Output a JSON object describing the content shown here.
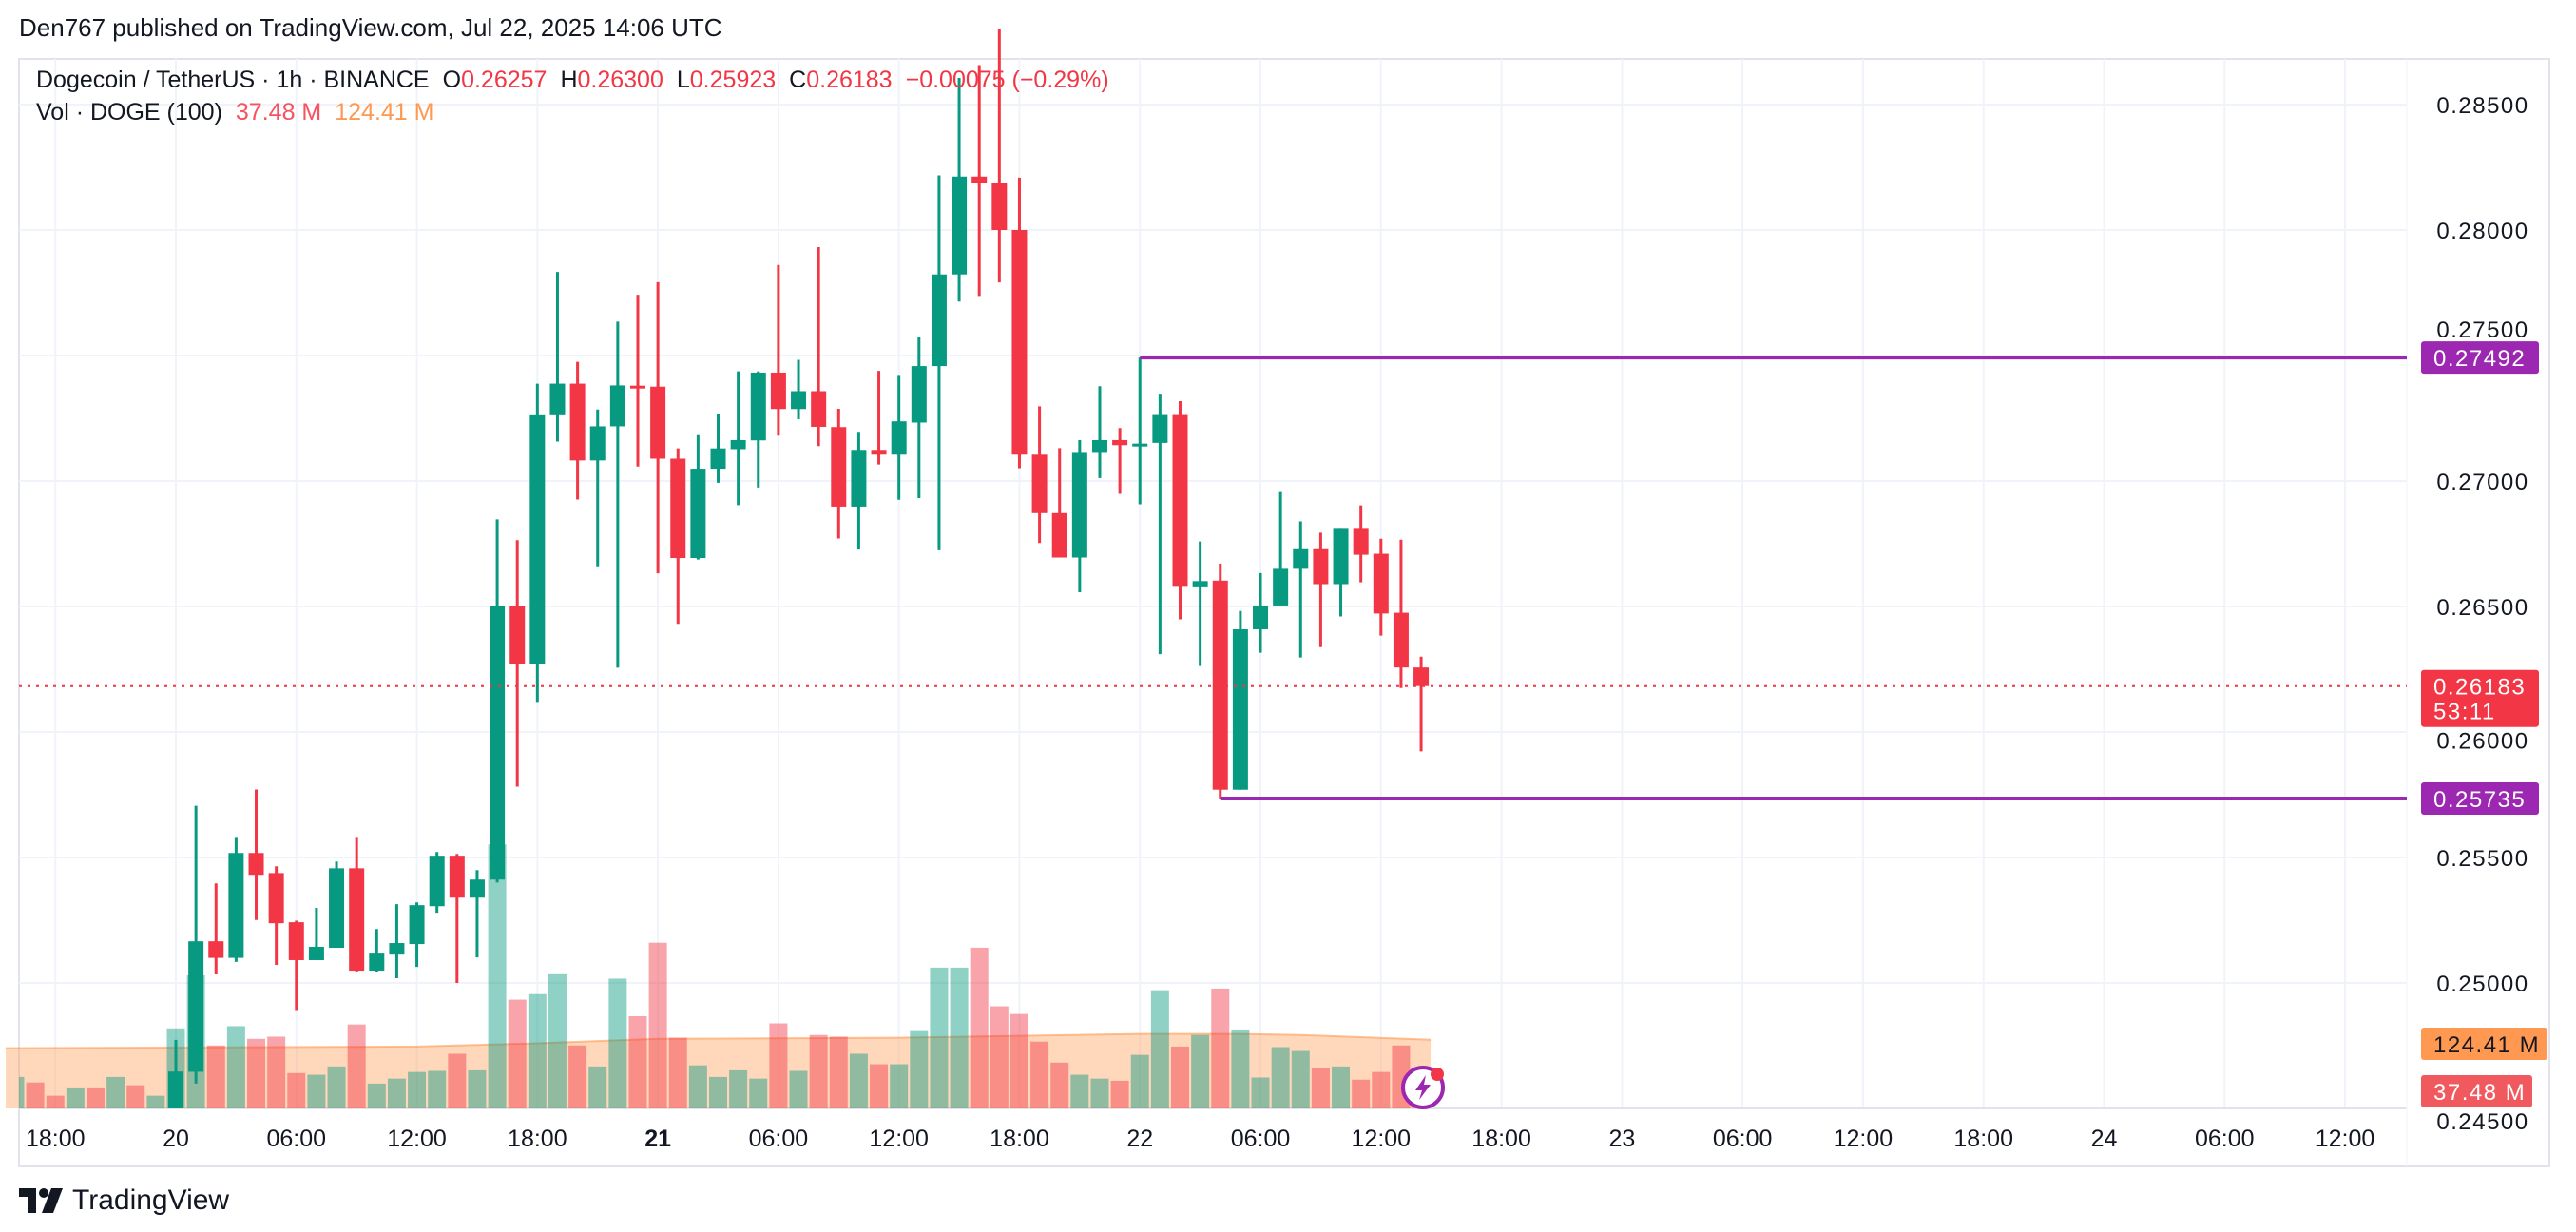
{
  "published": "Den767 published on TradingView.com, Jul 22, 2025 14:06 UTC",
  "legend": {
    "symbol": "Dogecoin / TetherUS · 1h · BINANCE",
    "o_label": "O",
    "o": "0.26257",
    "h_label": "H",
    "h": "0.26300",
    "l_label": "L",
    "l": "0.25923",
    "c_label": "C",
    "c": "0.26183",
    "change": "−0.00075 (−0.29%)",
    "vol_label": "Vol · DOGE (100)",
    "vol": "37.48 M",
    "vol_ma": "124.41 M"
  },
  "logo_text": "TradingView",
  "colors": {
    "up": "#089981",
    "down": "#f23645",
    "level_line": "#9c27b0",
    "volume_ma": "#ff9850",
    "current_price": "#f23645",
    "grid": "#f0f3fa"
  },
  "badges": {
    "resistance": "0.27492",
    "support": "0.25735",
    "last_price": "0.26183",
    "countdown": "53:11",
    "vol_ma": "124.41 M",
    "vol": "37.48 M"
  },
  "chart_data": {
    "type": "candlestick",
    "interval": "1h",
    "price_axis": {
      "range": [
        0.245,
        0.2875
      ],
      "ticks": [
        "0.28500",
        "0.28000",
        "0.27500",
        "0.27000",
        "0.26500",
        "0.26000",
        "0.25500",
        "0.25000",
        "0.24500"
      ],
      "grid": true
    },
    "time_axis": {
      "ticks": [
        {
          "text": "18:00",
          "bold": false
        },
        {
          "text": "20",
          "bold": false
        },
        {
          "text": "06:00",
          "bold": false
        },
        {
          "text": "12:00",
          "bold": false
        },
        {
          "text": "18:00",
          "bold": false
        },
        {
          "text": "21",
          "bold": true
        },
        {
          "text": "06:00",
          "bold": false
        },
        {
          "text": "12:00",
          "bold": false
        },
        {
          "text": "18:00",
          "bold": false
        },
        {
          "text": "22",
          "bold": false
        },
        {
          "text": "06:00",
          "bold": false
        },
        {
          "text": "12:00",
          "bold": false
        },
        {
          "text": "18:00",
          "bold": false
        },
        {
          "text": "23",
          "bold": false
        },
        {
          "text": "06:00",
          "bold": false
        },
        {
          "text": "12:00",
          "bold": false
        },
        {
          "text": "18:00",
          "bold": false
        },
        {
          "text": "24",
          "bold": false
        },
        {
          "text": "06:00",
          "bold": false
        },
        {
          "text": "12:00",
          "bold": false
        }
      ]
    },
    "candles_start": "2025-07-20 00:00",
    "candles_ohlc": [
      [
        0.24488,
        0.24773,
        0.24488,
        0.24647
      ],
      [
        0.24646,
        0.25706,
        0.24599,
        0.25166
      ],
      [
        0.25166,
        0.25397,
        0.25034,
        0.251
      ],
      [
        0.251,
        0.25578,
        0.25084,
        0.25518
      ],
      [
        0.25518,
        0.25771,
        0.25251,
        0.25431
      ],
      [
        0.25438,
        0.25465,
        0.25072,
        0.25238
      ],
      [
        0.25242,
        0.25248,
        0.24892,
        0.25091
      ],
      [
        0.25091,
        0.25299,
        0.25091,
        0.25144
      ],
      [
        0.2514,
        0.25484,
        0.2514,
        0.25457
      ],
      [
        0.25457,
        0.25578,
        0.25045,
        0.25049
      ],
      [
        0.25049,
        0.25215,
        0.25042,
        0.25117
      ],
      [
        0.25113,
        0.25314,
        0.25019,
        0.25159
      ],
      [
        0.25155,
        0.25321,
        0.25064,
        0.2531
      ],
      [
        0.25306,
        0.25522,
        0.2528,
        0.25507
      ],
      [
        0.25507,
        0.25514,
        0.25,
        0.2534
      ],
      [
        0.2534,
        0.2545,
        0.25102,
        0.25412
      ],
      [
        0.25412,
        0.26847,
        0.254,
        0.265
      ],
      [
        0.265,
        0.26764,
        0.25782,
        0.26271
      ],
      [
        0.26271,
        0.27388,
        0.2612,
        0.27262
      ],
      [
        0.27262,
        0.27833,
        0.27157,
        0.27388
      ],
      [
        0.27388,
        0.27475,
        0.26926,
        0.27082
      ],
      [
        0.27082,
        0.27285,
        0.2666,
        0.27218
      ],
      [
        0.27218,
        0.27635,
        0.26256,
        0.27381
      ],
      [
        0.2738,
        0.27742,
        0.27058,
        0.27378
      ],
      [
        0.27376,
        0.27792,
        0.26632,
        0.27089
      ],
      [
        0.27089,
        0.2713,
        0.26431,
        0.26693
      ],
      [
        0.26693,
        0.27183,
        0.26687,
        0.27049
      ],
      [
        0.27049,
        0.27267,
        0.26993,
        0.2713
      ],
      [
        0.27127,
        0.27437,
        0.26904,
        0.27163
      ],
      [
        0.27162,
        0.27437,
        0.26974,
        0.27432
      ],
      [
        0.27432,
        0.27861,
        0.27181,
        0.27287
      ],
      [
        0.27287,
        0.27483,
        0.27246,
        0.27358
      ],
      [
        0.27358,
        0.27932,
        0.27139,
        0.27216
      ],
      [
        0.27215,
        0.27288,
        0.26771,
        0.26898
      ],
      [
        0.26898,
        0.27196,
        0.26727,
        0.27124
      ],
      [
        0.27124,
        0.27439,
        0.27066,
        0.27105
      ],
      [
        0.27105,
        0.27419,
        0.26925,
        0.27238
      ],
      [
        0.27233,
        0.27573,
        0.26932,
        0.27458
      ],
      [
        0.27458,
        0.28218,
        0.26724,
        0.27823
      ],
      [
        0.27823,
        0.28606,
        0.27715,
        0.28213
      ],
      [
        0.28213,
        0.28657,
        0.27737,
        0.28187
      ],
      [
        0.28187,
        0.288,
        0.27791,
        0.28
      ],
      [
        0.28,
        0.28209,
        0.27051,
        0.27105
      ],
      [
        0.27105,
        0.27298,
        0.26753,
        0.26872
      ],
      [
        0.26872,
        0.27131,
        0.26695,
        0.26695
      ],
      [
        0.26695,
        0.27163,
        0.26557,
        0.27112
      ],
      [
        0.27112,
        0.27378,
        0.27012,
        0.27163
      ],
      [
        0.27163,
        0.27211,
        0.26949,
        0.27143
      ],
      [
        0.27143,
        0.27492,
        0.26907,
        0.27149
      ],
      [
        0.27152,
        0.27348,
        0.2631,
        0.27263
      ],
      [
        0.27263,
        0.27318,
        0.26449,
        0.26582
      ],
      [
        0.2658,
        0.26759,
        0.26263,
        0.26601
      ],
      [
        0.26603,
        0.26671,
        0.25735,
        0.2577
      ],
      [
        0.2577,
        0.26482,
        0.2577,
        0.26409
      ],
      [
        0.26409,
        0.26633,
        0.26316,
        0.26504
      ],
      [
        0.26504,
        0.26956,
        0.265,
        0.2665
      ],
      [
        0.2665,
        0.26839,
        0.26297,
        0.26732
      ],
      [
        0.26732,
        0.26794,
        0.26338,
        0.26589
      ],
      [
        0.26589,
        0.26813,
        0.2646,
        0.26813
      ],
      [
        0.26813,
        0.26903,
        0.26596,
        0.26706
      ],
      [
        0.2671,
        0.2677,
        0.26384,
        0.26472
      ],
      [
        0.26475,
        0.26766,
        0.26175,
        0.26257
      ],
      [
        0.26257,
        0.263,
        0.25923,
        0.26183
      ]
    ],
    "volume_start": "2025-07-19 16:00",
    "volume_unit": "M",
    "volume": [
      [
        57,
        "up"
      ],
      [
        47,
        "down"
      ],
      [
        23,
        "down"
      ],
      [
        38,
        "up"
      ],
      [
        38,
        "down"
      ],
      [
        57,
        "up"
      ],
      [
        42,
        "down"
      ],
      [
        23,
        "up"
      ],
      [
        145,
        "up"
      ],
      [
        241,
        "up"
      ],
      [
        114,
        "down"
      ],
      [
        149,
        "up"
      ],
      [
        126,
        "down"
      ],
      [
        130,
        "down"
      ],
      [
        64,
        "down"
      ],
      [
        61,
        "up"
      ],
      [
        76,
        "up"
      ],
      [
        152,
        "down"
      ],
      [
        45,
        "up"
      ],
      [
        54,
        "up"
      ],
      [
        66,
        "up"
      ],
      [
        68,
        "up"
      ],
      [
        99,
        "down"
      ],
      [
        69,
        "up"
      ],
      [
        478,
        "up"
      ],
      [
        197,
        "down"
      ],
      [
        207,
        "up"
      ],
      [
        243,
        "up"
      ],
      [
        114,
        "down"
      ],
      [
        76,
        "up"
      ],
      [
        235,
        "up"
      ],
      [
        167,
        "down"
      ],
      [
        300,
        "down"
      ],
      [
        128,
        "down"
      ],
      [
        78,
        "up"
      ],
      [
        57,
        "up"
      ],
      [
        69,
        "up"
      ],
      [
        54,
        "up"
      ],
      [
        154,
        "down"
      ],
      [
        68,
        "up"
      ],
      [
        133,
        "down"
      ],
      [
        130,
        "down"
      ],
      [
        99,
        "up"
      ],
      [
        80,
        "down"
      ],
      [
        80,
        "up"
      ],
      [
        140,
        "up"
      ],
      [
        255,
        "up"
      ],
      [
        255,
        "up"
      ],
      [
        291,
        "down"
      ],
      [
        185,
        "down"
      ],
      [
        171,
        "down"
      ],
      [
        121,
        "down"
      ],
      [
        83,
        "down"
      ],
      [
        61,
        "up"
      ],
      [
        54,
        "up"
      ],
      [
        50,
        "down"
      ],
      [
        97,
        "up"
      ],
      [
        214,
        "up"
      ],
      [
        112,
        "down"
      ],
      [
        133,
        "up"
      ],
      [
        217,
        "down"
      ],
      [
        143,
        "up"
      ],
      [
        56,
        "up"
      ],
      [
        111,
        "up"
      ],
      [
        104,
        "up"
      ],
      [
        73,
        "down"
      ],
      [
        76,
        "up"
      ],
      [
        52,
        "down"
      ],
      [
        66,
        "down"
      ],
      [
        114,
        "down"
      ],
      [
        37.48,
        "down"
      ]
    ],
    "volume_ma_100": [
      [
        "2025-07-19 16:00",
        109
      ],
      [
        "2025-07-20 12:00",
        112
      ],
      [
        "2025-07-20 18:00",
        118
      ],
      [
        "2025-07-21 00:00",
        126
      ],
      [
        "2025-07-21 12:00",
        128
      ],
      [
        "2025-07-22 00:00",
        135
      ],
      [
        "2025-07-22 05:00",
        135
      ],
      [
        "2025-07-22 08:00",
        133
      ],
      [
        "2025-07-22 14:00",
        124.41
      ]
    ],
    "horizontal_levels": [
      {
        "price": 0.27492,
        "from": "2025-07-22 00:00"
      },
      {
        "price": 0.25735,
        "from": "2025-07-22 04:00"
      }
    ],
    "last_price": 0.26183
  }
}
